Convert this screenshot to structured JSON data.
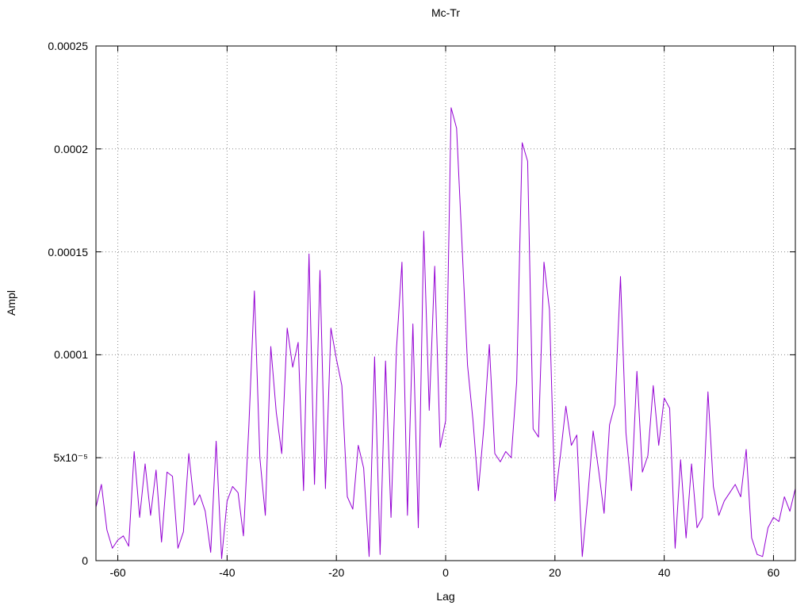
{
  "chart_data": {
    "type": "line",
    "title": "Mc-Tr",
    "xlabel": "Lag",
    "ylabel": "Ampl",
    "xlim": [
      -64,
      64
    ],
    "ylim": [
      0,
      0.00025
    ],
    "grid": true,
    "legend": "none",
    "line_color": "#9400d3",
    "xticks": {
      "values": [
        -60,
        -40,
        -20,
        0,
        20,
        40,
        60
      ],
      "labels": [
        "-60",
        "-40",
        "-20",
        "0",
        "20",
        "40",
        "60"
      ]
    },
    "yticks": {
      "values": [
        0,
        5e-05,
        0.0001,
        0.00015,
        0.0002,
        0.00025
      ],
      "labels": [
        "0",
        "5x10⁻⁵",
        "0.0001",
        "0.00015",
        "0.0002",
        "0.00025"
      ]
    },
    "series": [
      {
        "name": "Mc-Tr",
        "x_start": -64,
        "x_step": 1,
        "values": [
          2.6e-05,
          3.7e-05,
          1.5e-05,
          6e-06,
          1e-05,
          1.2e-05,
          7e-06,
          5.3e-05,
          2.1e-05,
          4.7e-05,
          2.2e-05,
          4.4e-05,
          9e-06,
          4.3e-05,
          4.1e-05,
          6e-06,
          1.4e-05,
          5.2e-05,
          2.7e-05,
          3.2e-05,
          2.4e-05,
          4e-06,
          5.8e-05,
          1e-06,
          2.9e-05,
          3.6e-05,
          3.3e-05,
          1.2e-05,
          6.6e-05,
          0.000131,
          5e-05,
          2.2e-05,
          0.000104,
          7.2e-05,
          5.2e-05,
          0.000113,
          9.4e-05,
          0.000106,
          3.4e-05,
          0.000149,
          3.7e-05,
          0.000141,
          3.5e-05,
          0.000113,
          9.8e-05,
          8.5e-05,
          3.1e-05,
          2.5e-05,
          5.6e-05,
          4.5e-05,
          2e-06,
          9.9e-05,
          3e-06,
          9.7e-05,
          2.1e-05,
          0.000103,
          0.000145,
          2.2e-05,
          0.000115,
          1.6e-05,
          0.00016,
          7.3e-05,
          0.000143,
          5.5e-05,
          6.8e-05,
          0.00022,
          0.00021,
          0.000153,
          9.5e-05,
          6.8e-05,
          3.4e-05,
          6.5e-05,
          0.000105,
          5.2e-05,
          4.8e-05,
          5.3e-05,
          5e-05,
          8.7e-05,
          0.000203,
          0.000194,
          6.4e-05,
          6e-05,
          0.000145,
          0.000122,
          2.9e-05,
          5.1e-05,
          7.5e-05,
          5.6e-05,
          6.1e-05,
          2e-06,
          3.1e-05,
          6.3e-05,
          4.4e-05,
          2.3e-05,
          6.6e-05,
          7.6e-05,
          0.000138,
          6.2e-05,
          3.4e-05,
          9.2e-05,
          4.3e-05,
          5.1e-05,
          8.5e-05,
          5.6e-05,
          7.9e-05,
          7.4e-05,
          6e-06,
          4.9e-05,
          1.1e-05,
          4.7e-05,
          1.6e-05,
          2.1e-05,
          8.2e-05,
          3.6e-05,
          2.2e-05,
          2.9e-05,
          3.3e-05,
          3.7e-05,
          3.1e-05,
          5.4e-05,
          1.1e-05,
          3e-06,
          2e-06,
          1.6e-05,
          2.1e-05,
          1.9e-05,
          3.1e-05,
          2.4e-05,
          3.5e-05
        ]
      }
    ]
  }
}
